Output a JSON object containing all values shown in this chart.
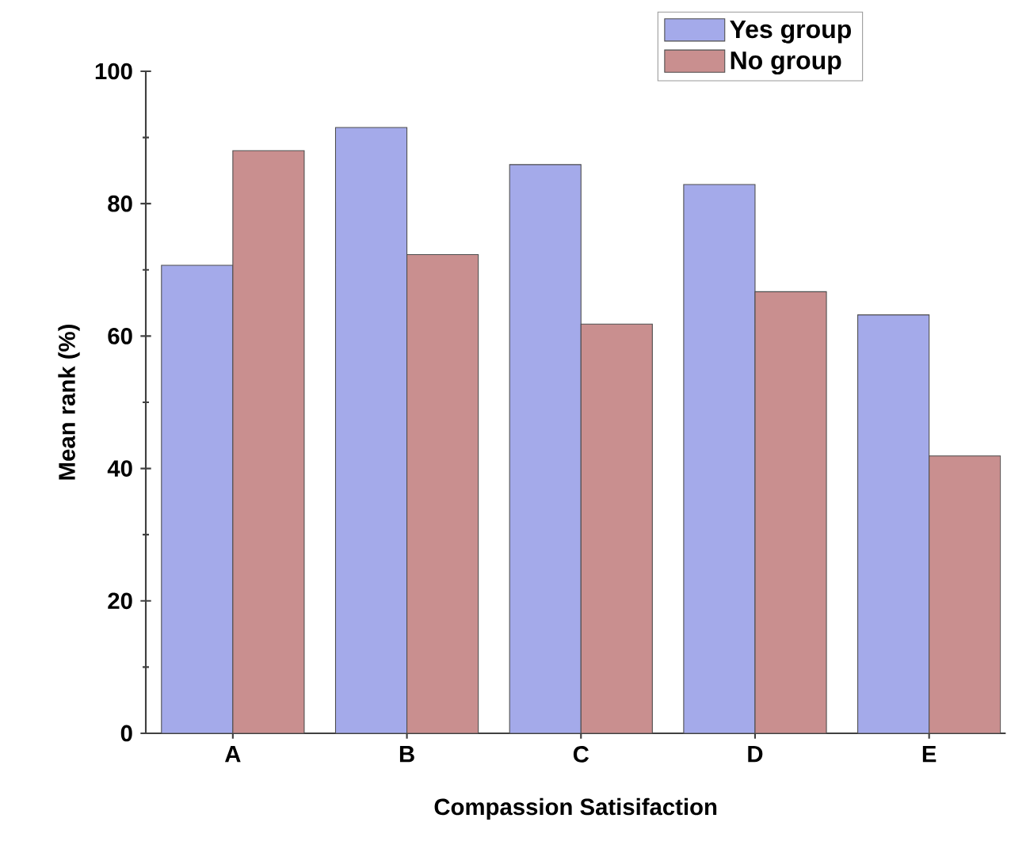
{
  "chart_data": {
    "type": "bar",
    "xlabel": "Compassion Satisifaction",
    "ylabel": "Mean rank (%)",
    "categories": [
      "A",
      "B",
      "C",
      "D",
      "E"
    ],
    "series": [
      {
        "name": "Yes group",
        "color": "#a4aaea",
        "values": [
          70.7,
          91.5,
          85.9,
          82.9,
          63.2
        ]
      },
      {
        "name": "No group",
        "color": "#c98f8f",
        "values": [
          88.0,
          72.3,
          61.8,
          66.7,
          41.9
        ]
      }
    ],
    "ylim": [
      0,
      100
    ],
    "yticks": [
      0,
      20,
      40,
      60,
      80,
      100
    ],
    "legend": "top right"
  }
}
